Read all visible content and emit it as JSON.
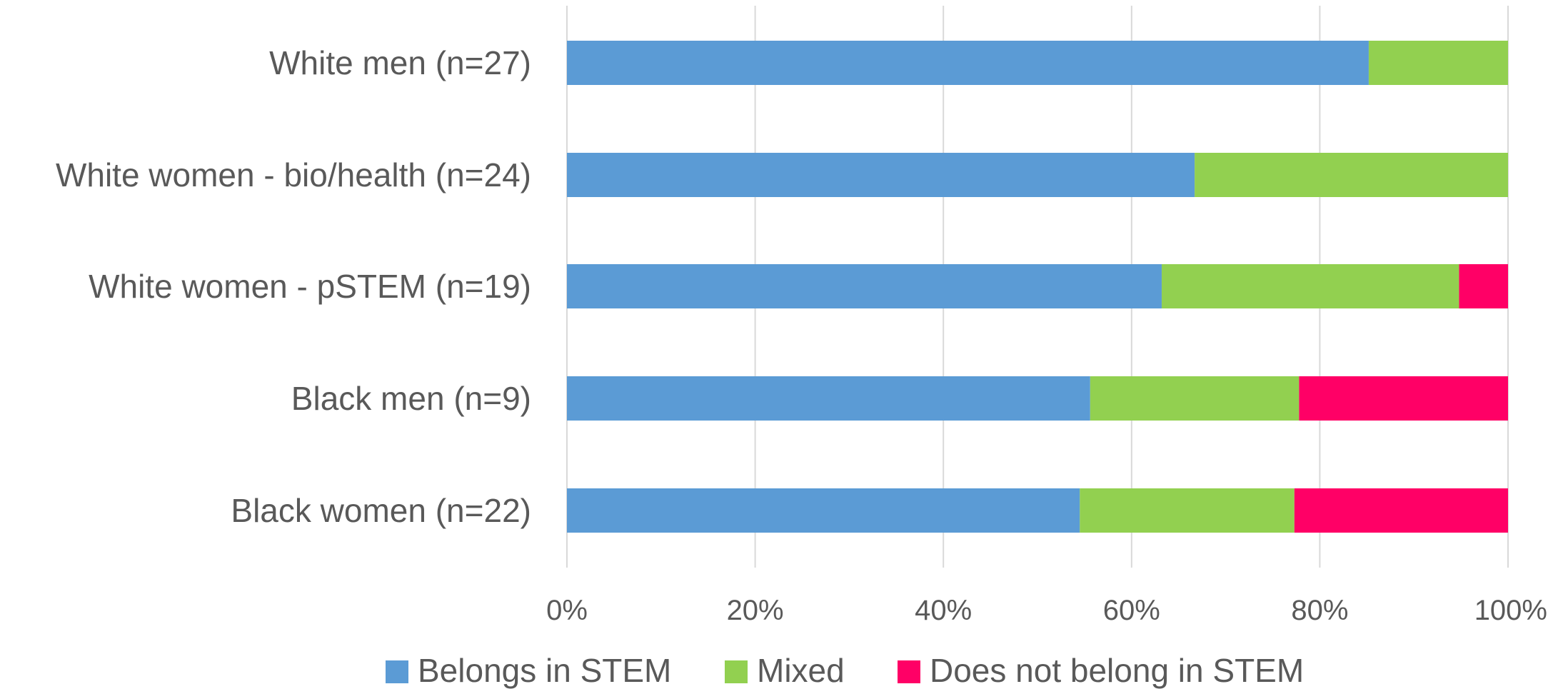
{
  "chart_data": {
    "type": "bar",
    "orientation": "horizontal",
    "stacked": "percent",
    "categories": [
      "White men (n=27)",
      "White women - bio/health (n=24)",
      "White women - pSTEM (n=19)",
      "Black men (n=9)",
      "Black women (n=22)"
    ],
    "series": [
      {
        "name": "Belongs in STEM",
        "color": "#5b9bd5",
        "values": [
          85.2,
          66.7,
          63.2,
          55.6,
          54.5
        ]
      },
      {
        "name": "Mixed",
        "color": "#92d050",
        "values": [
          14.8,
          33.3,
          31.6,
          22.2,
          22.8
        ]
      },
      {
        "name": "Does not belong in STEM",
        "color": "#ff0066",
        "values": [
          0,
          0,
          5.2,
          22.2,
          22.7
        ]
      }
    ],
    "xticks": [
      "0%",
      "20%",
      "40%",
      "60%",
      "80%",
      "100%"
    ],
    "xlim": [
      0,
      100
    ],
    "grid": true,
    "legend_position": "bottom"
  }
}
